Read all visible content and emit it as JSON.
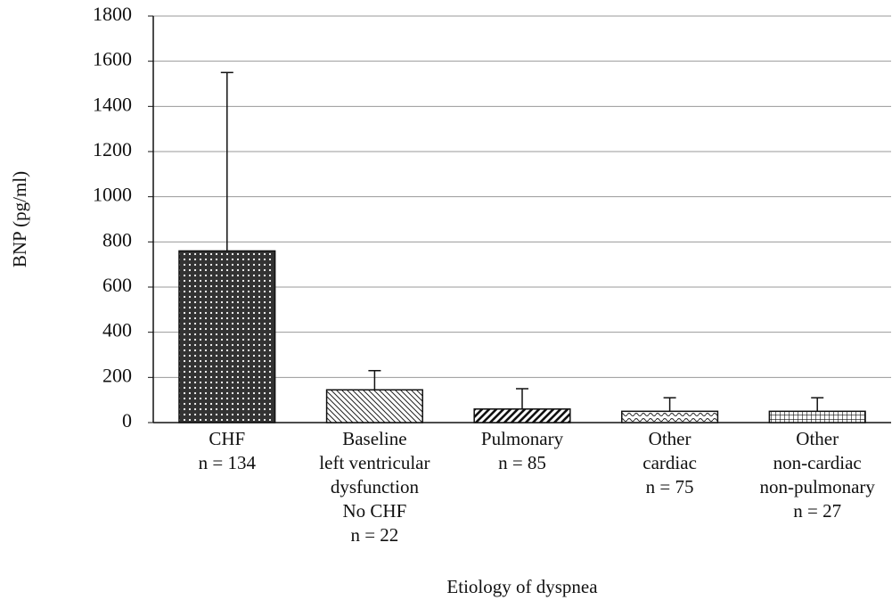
{
  "chart_data": {
    "type": "bar",
    "x_label": "Etiology of dyspnea",
    "y_label": "BNP (pg/ml)",
    "categories": [
      [
        "CHF",
        "n = 134"
      ],
      [
        "Baseline",
        "left ventricular",
        "dysfunction",
        "No CHF",
        "n = 22"
      ],
      [
        "Pulmonary",
        "n = 85"
      ],
      [
        "Other",
        "cardiac",
        "n = 75"
      ],
      [
        "Other",
        "non-cardiac",
        "non-pulmonary",
        "n = 27"
      ]
    ],
    "values": [
      760,
      145,
      60,
      50,
      50
    ],
    "errors": [
      790,
      85,
      90,
      60,
      60
    ],
    "ylim": [
      0,
      1800
    ],
    "yticks": [
      0,
      200,
      400,
      600,
      800,
      1000,
      1200,
      1400,
      1600,
      1800
    ],
    "grid": true
  }
}
